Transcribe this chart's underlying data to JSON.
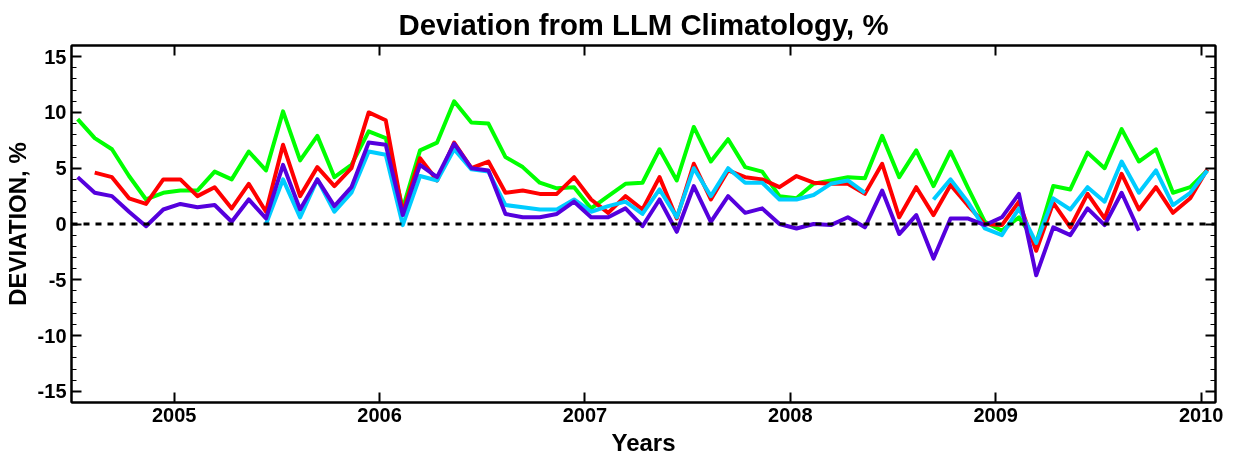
{
  "chart_data": {
    "type": "line",
    "title": "Deviation from LLM Climatology, %",
    "xlabel": "Years",
    "ylabel": "DEVIATION, %",
    "x": [
      2004.53,
      2004.613,
      2004.697,
      2004.78,
      2004.863,
      2004.947,
      2005.03,
      2005.113,
      2005.197,
      2005.28,
      2005.363,
      2005.447,
      2005.53,
      2005.613,
      2005.697,
      2005.78,
      2005.863,
      2005.947,
      2006.03,
      2006.113,
      2006.197,
      2006.28,
      2006.363,
      2006.447,
      2006.53,
      2006.613,
      2006.697,
      2006.78,
      2006.863,
      2006.947,
      2007.03,
      2007.113,
      2007.197,
      2007.28,
      2007.363,
      2007.447,
      2007.53,
      2007.613,
      2007.697,
      2007.78,
      2007.863,
      2007.947,
      2008.03,
      2008.113,
      2008.197,
      2008.28,
      2008.363,
      2008.447,
      2008.53,
      2008.613,
      2008.697,
      2008.78,
      2008.863,
      2008.947,
      2009.03,
      2009.113,
      2009.197,
      2009.28,
      2009.363,
      2009.447,
      2009.53,
      2009.613,
      2009.697,
      2009.78,
      2009.863,
      2009.947,
      2010.03
    ],
    "series": [
      {
        "color": "#00ff00",
        "values": [
          9.4,
          7.7,
          6.7,
          4.3,
          2.2,
          2.8,
          3.0,
          3.0,
          4.7,
          4.0,
          6.5,
          4.8,
          10.1,
          5.7,
          7.9,
          4.2,
          5.3,
          8.3,
          7.7,
          1.4,
          6.6,
          7.3,
          11.0,
          9.1,
          9.0,
          6.0,
          5.1,
          3.7,
          3.2,
          3.3,
          1.4,
          2.5,
          3.6,
          3.7,
          6.7,
          3.9,
          8.7,
          5.6,
          7.6,
          5.1,
          4.7,
          2.5,
          2.3,
          3.6,
          3.9,
          4.2,
          4.1,
          7.9,
          4.2,
          6.6,
          3.4,
          6.5,
          3.3,
          0.2,
          -0.6,
          0.6,
          -1.7,
          3.4,
          3.1,
          6.4,
          5.0,
          8.5,
          5.6,
          6.7,
          2.8,
          3.3,
          4.8
        ]
      },
      {
        "color": "#ff0000",
        "values": [
          null,
          4.6,
          4.2,
          2.3,
          1.8,
          4.0,
          4.0,
          2.5,
          3.3,
          1.4,
          3.6,
          1.1,
          7.1,
          2.5,
          5.1,
          3.4,
          5.0,
          10.0,
          9.3,
          1.0,
          5.9,
          3.9,
          7.3,
          5.0,
          5.6,
          2.8,
          3.0,
          2.7,
          2.7,
          4.2,
          2.2,
          1.0,
          2.5,
          1.3,
          4.2,
          0.5,
          5.4,
          2.2,
          4.8,
          4.2,
          4.0,
          3.3,
          4.3,
          3.7,
          3.6,
          3.6,
          2.7,
          5.4,
          0.6,
          3.3,
          0.8,
          3.5,
          1.7,
          0.0,
          -0.1,
          2.0,
          -2.4,
          1.9,
          -0.3,
          2.7,
          0.5,
          4.5,
          1.3,
          3.3,
          1.0,
          2.3,
          4.9
        ]
      },
      {
        "color": "#00ccff",
        "values": [
          null,
          null,
          null,
          null,
          null,
          null,
          null,
          null,
          null,
          null,
          null,
          0.0,
          4.0,
          0.6,
          4.0,
          1.1,
          2.8,
          6.5,
          6.2,
          -0.1,
          4.3,
          3.9,
          6.7,
          4.9,
          4.7,
          1.7,
          1.5,
          1.3,
          1.3,
          2.2,
          1.1,
          1.6,
          2.0,
          0.9,
          3.1,
          0.6,
          5.0,
          2.5,
          5.0,
          3.7,
          3.7,
          2.2,
          2.2,
          2.6,
          3.6,
          3.9,
          2.8,
          null,
          null,
          null,
          2.2,
          4.0,
          2.0,
          -0.4,
          -1.0,
          1.4,
          -1.7,
          2.3,
          1.3,
          3.3,
          2.0,
          5.6,
          2.8,
          4.8,
          1.7,
          2.8,
          4.8
        ]
      },
      {
        "color": "#5500dd",
        "values": [
          4.2,
          2.8,
          2.5,
          1.1,
          -0.2,
          1.3,
          1.8,
          1.5,
          1.7,
          0.2,
          2.2,
          0.5,
          5.3,
          1.3,
          4.0,
          1.6,
          3.3,
          7.3,
          7.1,
          0.8,
          5.3,
          4.2,
          7.2,
          5.0,
          4.8,
          0.9,
          0.6,
          0.6,
          0.9,
          2.0,
          0.6,
          0.6,
          1.4,
          -0.2,
          2.2,
          -0.7,
          3.4,
          0.2,
          2.5,
          1.0,
          1.4,
          0.0,
          -0.4,
          0.0,
          -0.1,
          0.6,
          -0.3,
          3.0,
          -0.9,
          0.8,
          -3.1,
          0.5,
          0.5,
          -0.1,
          0.6,
          2.7,
          -4.6,
          -0.3,
          -1.0,
          1.4,
          -0.1,
          2.8,
          -0.6,
          null,
          null,
          null,
          null
        ]
      }
    ],
    "xlim": [
      2004.5,
      2010.07
    ],
    "ylim": [
      -16,
      16
    ],
    "xticks": [
      2005,
      2006,
      2007,
      2008,
      2009,
      2010
    ],
    "yticks": [
      -15,
      -10,
      -5,
      0,
      5,
      10,
      15
    ],
    "ref_lines": [
      {
        "axis": "y",
        "value": 0,
        "color": "#000000",
        "line_style": "dashed"
      }
    ],
    "grid": false,
    "marker": "none",
    "line_style": "solid"
  }
}
